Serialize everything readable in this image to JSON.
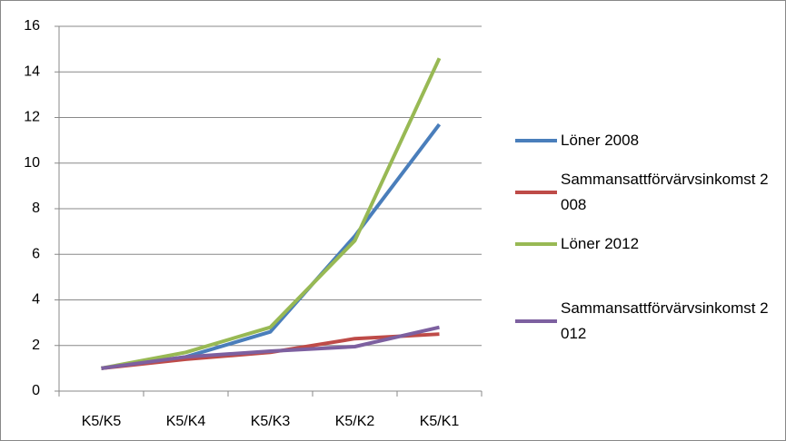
{
  "chart_data": {
    "type": "line",
    "categories": [
      "K5/K5",
      "K5/K4",
      "K5/K3",
      "K5/K2",
      "K5/K1"
    ],
    "series": [
      {
        "name": "Löner 2008",
        "color": "#4a7ebb",
        "values": [
          1,
          1.5,
          2.6,
          6.8,
          11.7
        ]
      },
      {
        "name": "Sammansattförvärvsinkomst 2008",
        "color": "#be4b48",
        "values": [
          1,
          1.4,
          1.7,
          2.3,
          2.5
        ]
      },
      {
        "name": "Löner 2012",
        "color": "#98b954",
        "values": [
          1,
          1.7,
          2.8,
          6.6,
          14.6
        ]
      },
      {
        "name": "Sammansattförvärvsinkomst 2012",
        "color": "#7d60a0",
        "values": [
          1,
          1.5,
          1.75,
          1.95,
          2.8
        ]
      }
    ],
    "ylim": [
      0,
      16
    ],
    "yticks": [
      0,
      2,
      4,
      6,
      8,
      10,
      12,
      14,
      16
    ],
    "grid": true,
    "legend": "right"
  }
}
